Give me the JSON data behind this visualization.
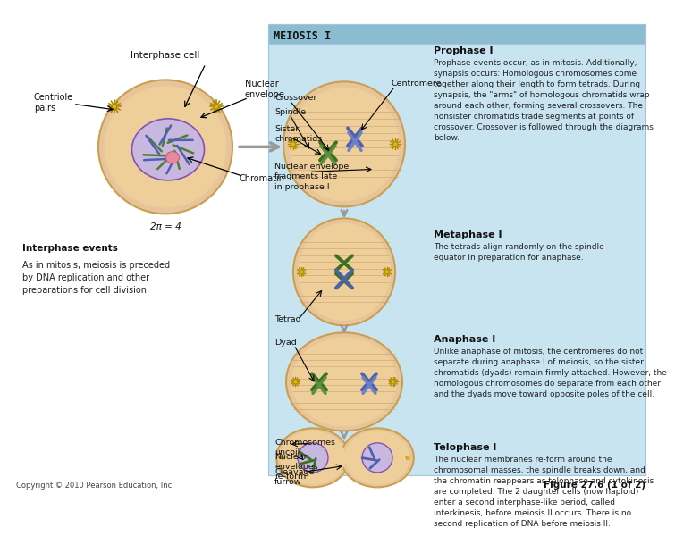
{
  "bg_color": "#ffffff",
  "panel_bg": "#cde8f5",
  "title_meiosis": "MEIOSIS I",
  "interphase_label": "Interphase cell",
  "centriole_label": "Centriole\npairs",
  "nuclear_env_label": "Nuclear\nenvelope",
  "chromatin_label": "Chromatin",
  "two_n_label": "2π = 4",
  "interphase_events_title": "Interphase events",
  "interphase_events_text": "As in mitosis, meiosis is preceded\nby DNA replication and other\npreparations for cell division.",
  "prophase_title": "Prophase I",
  "prophase_text": "Prophase events occur, as in mitosis. Additionally,\nsynapsis occurs: Homologous chromosomes come\ntogether along their length to form tetrads. During\nsynapsis, the \"arms\" of homologous chromatids wrap\naround each other, forming several crossovers. The\nnonsister chromatids trade segments at points of\ncrossover. Crossover is followed through the diagrams\nbelow.",
  "crossover_label": "Crossover",
  "spindle_label": "Spindle",
  "centromere_label": "Centromere",
  "sister_chromatids_label": "Sister\nchromatids",
  "nuc_env_frag_label": "Nuclear envelope\nfragments late\nin prophase I",
  "metaphase_title": "Metaphase I",
  "metaphase_text": "The tetrads align randomly on the spindle\nequator in preparation for anaphase.",
  "tetrad_label": "Tetrad",
  "anaphase_title": "Anaphase I",
  "anaphase_text": "Unlike anaphase of mitosis, the centromeres do not\nseparate during anaphase I of meiosis, so the sister\nchromatids (dyads) remain firmly attached. However, the\nhomologous chromosomes do separate from each other\nand the dyads move toward opposite poles of the cell.",
  "dyad_label": "Dyad",
  "telophase_title": "Telophase I",
  "telophase_text": "The nuclear membranes re-form around the\nchromosomal masses, the spindle breaks down, and\nthe chromatin reappears as telophase and cytokinesis\nare completed. The 2 daughter cells (now haploid)\nenter a second interphase-like period, called\ninterkinesis, before meiosis II occurs. There is no\nsecond replication of DNA before meiosis II.",
  "chromosomes_uncoil_label": "Chromosomes\nuncoil",
  "nuc_env_reform_label": "Nuclear\nenvelopes\nre-form",
  "cleavage_furrow_label": "Cleavage\nfurrow",
  "copyright": "Copyright © 2010 Pearson Education, Inc.",
  "figure_label": "Figure 27.6 (1 of 2)"
}
